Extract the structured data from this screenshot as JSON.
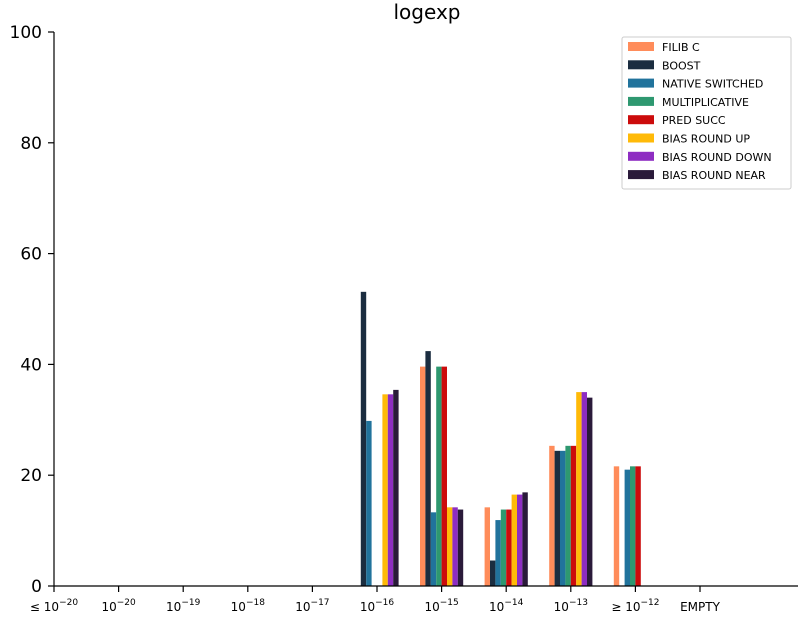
{
  "chart_data": {
    "type": "bar",
    "title": "logexp",
    "xlabel": "",
    "ylabel": "",
    "ylim": [
      0,
      100
    ],
    "yticks": [
      0,
      20,
      40,
      60,
      80,
      100
    ],
    "categories": [
      {
        "base": "≤ 10",
        "exp": "−20"
      },
      {
        "base": "10",
        "exp": "−20"
      },
      {
        "base": "10",
        "exp": "−19"
      },
      {
        "base": "10",
        "exp": "−18"
      },
      {
        "base": "10",
        "exp": "−17"
      },
      {
        "base": "10",
        "exp": "−16"
      },
      {
        "base": "10",
        "exp": "−15"
      },
      {
        "base": "10",
        "exp": "−14"
      },
      {
        "base": "10",
        "exp": "−13"
      },
      {
        "base": "≥ 10",
        "exp": "−12"
      },
      {
        "base": "EMPTY",
        "exp": ""
      }
    ],
    "legend_position": "top-right",
    "grid": false,
    "series": [
      {
        "name": "FILIB C",
        "color": "#FF8C5A",
        "values": [
          0,
          0,
          0,
          0,
          0,
          0,
          39.6,
          14.2,
          25.3,
          21.6,
          0
        ]
      },
      {
        "name": "BOOST",
        "color": "#1B2D40",
        "values": [
          0,
          0,
          0,
          0,
          0,
          53.1,
          42.4,
          4.6,
          24.4,
          0,
          0
        ]
      },
      {
        "name": "NATIVE SWITCHED",
        "color": "#21739C",
        "values": [
          0,
          0,
          0,
          0,
          0,
          29.8,
          13.3,
          11.9,
          24.4,
          21.0,
          0
        ]
      },
      {
        "name": "MULTIPLICATIVE",
        "color": "#2E9870",
        "values": [
          0,
          0,
          0,
          0,
          0,
          0,
          39.6,
          13.8,
          25.3,
          21.6,
          0
        ]
      },
      {
        "name": "PRED SUCC",
        "color": "#CC0B0B",
        "values": [
          0,
          0,
          0,
          0,
          0,
          0,
          39.6,
          13.8,
          25.3,
          21.6,
          0
        ]
      },
      {
        "name": "BIAS ROUND UP",
        "color": "#FFBA08",
        "values": [
          0,
          0,
          0,
          0,
          0,
          34.6,
          14.2,
          16.5,
          35.0,
          0,
          0
        ]
      },
      {
        "name": "BIAS ROUND DOWN",
        "color": "#8E2DC2",
        "values": [
          0,
          0,
          0,
          0,
          0,
          34.6,
          14.2,
          16.5,
          35.0,
          0,
          0
        ]
      },
      {
        "name": "BIAS ROUND NEAR",
        "color": "#2A1A3A",
        "values": [
          0,
          0,
          0,
          0,
          0,
          35.4,
          13.8,
          16.9,
          34.0,
          0,
          0
        ]
      }
    ]
  }
}
